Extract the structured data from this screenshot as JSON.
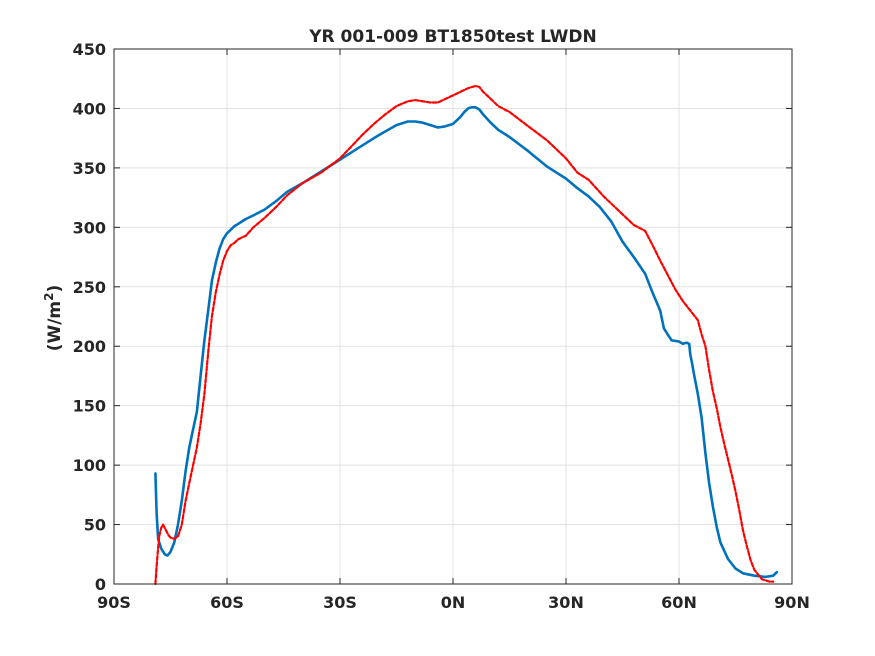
{
  "chart_data": {
    "type": "line",
    "title": "YR 001-009 BT1850test LWDN",
    "xlabel": "",
    "ylabel": "(W/m",
    "ylabel_superscript": "2",
    "ylabel_close": ")",
    "xlim": [
      -90,
      90
    ],
    "ylim": [
      0,
      450
    ],
    "xticks": [
      -90,
      -60,
      -30,
      0,
      30,
      60,
      90
    ],
    "xtick_labels": [
      "90S",
      "60S",
      "30S",
      "0N",
      "30N",
      "60N",
      "90N"
    ],
    "yticks": [
      0,
      50,
      100,
      150,
      200,
      250,
      300,
      350,
      400,
      450
    ],
    "ytick_labels": [
      "0",
      "50",
      "100",
      "150",
      "200",
      "250",
      "300",
      "350",
      "400",
      "450"
    ],
    "grid": true,
    "series": [
      {
        "color": "#0072BD",
        "style": "solid",
        "x": [
          -79,
          -78.7,
          -78.3,
          -77.5,
          -76.5,
          -75.8,
          -75,
          -74,
          -73,
          -72,
          -71,
          -70,
          -69,
          -68,
          -67,
          -66,
          -65,
          -64,
          -63,
          -62,
          -61,
          -60,
          -59,
          -58,
          -57,
          -56,
          -55,
          -53,
          -50,
          -47,
          -44,
          -40,
          -35,
          -30,
          -25,
          -20,
          -15,
          -12,
          -10,
          -8,
          -6,
          -4,
          -2,
          0,
          2,
          3,
          4,
          5,
          6,
          7,
          8,
          10,
          12,
          15,
          20,
          25,
          30,
          33,
          36,
          39,
          42,
          45,
          48,
          51,
          53,
          55,
          56,
          58,
          60,
          61,
          62,
          62.7,
          63,
          63.5,
          64,
          65,
          66,
          67,
          68,
          69,
          70,
          71,
          72,
          73,
          75,
          77,
          80,
          83,
          85,
          86
        ],
        "y": [
          93,
          60,
          38,
          30,
          25,
          24,
          27,
          35,
          50,
          70,
          95,
          115,
          130,
          145,
          175,
          205,
          230,
          255,
          270,
          282,
          290,
          295,
          298,
          301,
          303,
          305,
          307,
          310,
          315,
          322,
          330,
          337,
          347,
          357,
          367,
          377,
          386,
          389,
          389,
          388,
          386,
          384,
          385,
          387,
          393,
          397,
          400,
          401,
          401,
          399,
          395,
          388,
          382,
          376,
          364,
          351,
          341,
          333,
          326,
          317,
          305,
          288,
          275,
          261,
          245,
          230,
          215,
          205,
          204,
          202,
          203,
          202,
          193,
          185,
          176,
          160,
          140,
          110,
          85,
          65,
          48,
          35,
          28,
          21,
          13,
          9,
          7,
          6,
          7,
          10
        ]
      },
      {
        "color": "#FF0000",
        "style": "dashed",
        "x": [
          -79,
          -78.7,
          -78.3,
          -78,
          -77.5,
          -77,
          -76.5,
          -76,
          -75.5,
          -75,
          -74,
          -73,
          -72,
          -71,
          -70,
          -69,
          -68,
          -67,
          -66,
          -65,
          -64,
          -63,
          -62,
          -61,
          -60,
          -59,
          -58,
          -57,
          -55,
          -53,
          -50,
          -47,
          -44,
          -40,
          -35,
          -30,
          -27,
          -24,
          -21,
          -18,
          -15,
          -12,
          -10,
          -8,
          -6,
          -4,
          -2,
          0,
          2,
          4,
          6,
          7,
          8,
          10,
          12,
          15,
          20,
          25,
          30,
          33,
          36,
          40,
          44,
          48,
          51,
          53,
          55,
          57,
          59,
          61,
          63,
          65,
          66,
          67,
          68,
          69,
          70,
          71,
          72,
          73,
          74,
          75,
          76,
          77,
          78,
          79,
          80,
          81,
          82,
          83,
          84,
          85
        ],
        "y": [
          0,
          15,
          30,
          40,
          47,
          50,
          47,
          44,
          41,
          39,
          38,
          40,
          50,
          70,
          85,
          100,
          115,
          135,
          160,
          195,
          225,
          245,
          260,
          272,
          280,
          285,
          287,
          290,
          293,
          300,
          308,
          317,
          327,
          337,
          346,
          358,
          368,
          378,
          387,
          395,
          402,
          406,
          407,
          406,
          405,
          405,
          408,
          411,
          414,
          417,
          419,
          418,
          414,
          408,
          402,
          397,
          385,
          373,
          358,
          346,
          340,
          326,
          314,
          302,
          297,
          285,
          272,
          260,
          248,
          238,
          230,
          222,
          210,
          200,
          180,
          162,
          148,
          132,
          118,
          105,
          92,
          78,
          62,
          45,
          32,
          20,
          12,
          8,
          4,
          3,
          2,
          2
        ]
      }
    ]
  }
}
